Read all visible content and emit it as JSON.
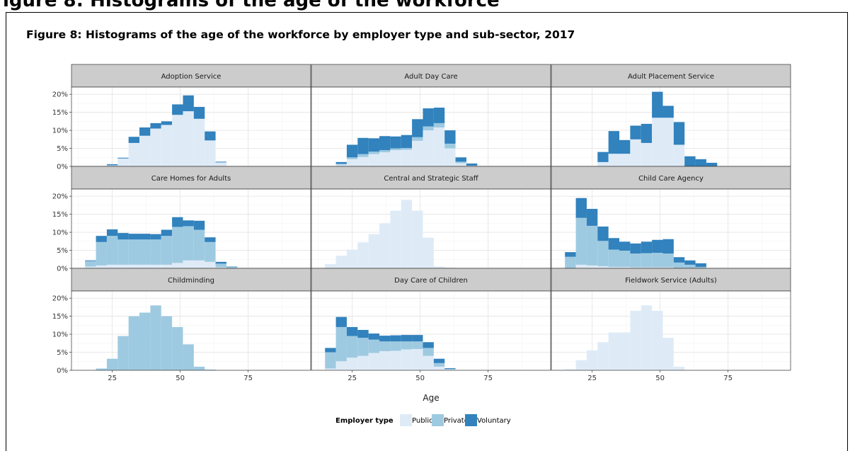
{
  "header": {
    "cut_heading": "igure 8: Histograms of the age of the workforce"
  },
  "figure": {
    "title": "Figure 8: Histograms of the age of the workforce by employer type and sub-sector, 2017"
  },
  "chart_data": {
    "type": "bar",
    "layout": "faceted stacked histogram, 3 x 3 panels",
    "bins": [
      17,
      21,
      25,
      29,
      33,
      37,
      41,
      45,
      49,
      53,
      57,
      61,
      65,
      69,
      73,
      77,
      81,
      85,
      89
    ],
    "bin_width": 4,
    "x_range": [
      10,
      98
    ],
    "x_ticks": [
      25,
      50,
      75
    ],
    "x_label": "Age",
    "y_range": [
      0,
      22
    ],
    "y_ticks": [
      0,
      5,
      10,
      15,
      20
    ],
    "y_tick_labels": [
      "0%",
      "5%",
      "10%",
      "15%",
      "20%"
    ],
    "grid": true,
    "legend": {
      "position": "bottom",
      "title": "Employer type",
      "entries": [
        {
          "name": "Public",
          "color": "#deebf7"
        },
        {
          "name": "Private",
          "color": "#9ecae1"
        },
        {
          "name": "Voluntary",
          "color": "#3182bd"
        }
      ]
    },
    "panels": [
      {
        "name": "Adoption Service",
        "public": [
          0,
          0,
          0.3,
          2.2,
          6.5,
          8.5,
          10.5,
          11.5,
          14.3,
          15.3,
          13.2,
          7.2,
          1.1,
          0,
          0,
          0,
          0,
          0,
          0
        ],
        "private": [
          0,
          0,
          0,
          0,
          0,
          0,
          0,
          0,
          0,
          0,
          0,
          0,
          0,
          0,
          0,
          0,
          0,
          0,
          0
        ],
        "voluntary": [
          0,
          0,
          0.3,
          0.2,
          1.7,
          2.3,
          1.5,
          1.0,
          2.9,
          4.4,
          3.3,
          2.5,
          0.2,
          0,
          0,
          0,
          0,
          0,
          0
        ]
      },
      {
        "name": "Adult Day Care",
        "public": [
          0,
          0.5,
          2.0,
          2.6,
          3.4,
          3.9,
          4.5,
          4.6,
          7.1,
          10.0,
          10.8,
          5.0,
          0.9,
          0.2,
          0,
          0,
          0,
          0,
          0
        ],
        "private": [
          0,
          0.2,
          0.5,
          0.8,
          0.7,
          0.6,
          0.5,
          0.5,
          1.0,
          1.1,
          1.2,
          1.3,
          0.4,
          0,
          0,
          0,
          0,
          0,
          0
        ],
        "voluntary": [
          0,
          0.5,
          3.5,
          4.5,
          3.7,
          3.9,
          3.3,
          3.6,
          5.0,
          5.0,
          4.3,
          3.7,
          1.2,
          0.6,
          0,
          0,
          0,
          0,
          0
        ]
      },
      {
        "name": "Adult Placement Service",
        "public": [
          0,
          0,
          0,
          1.2,
          3.5,
          3.5,
          7.5,
          6.5,
          13.5,
          13.5,
          6.0,
          0,
          0,
          0,
          0,
          0,
          0,
          0,
          0
        ],
        "private": [
          0,
          0,
          0,
          0,
          0,
          0,
          0,
          0,
          0,
          0,
          0,
          0,
          0,
          0,
          0,
          0,
          0,
          0,
          0
        ],
        "voluntary": [
          0,
          0,
          0,
          2.8,
          6.3,
          3.8,
          3.8,
          5.3,
          7.2,
          3.3,
          6.3,
          2.8,
          2.0,
          1.0,
          0,
          0,
          0,
          0,
          0
        ]
      },
      {
        "name": "Care Homes for Adults",
        "public": [
          0.5,
          0.8,
          1.0,
          1.0,
          1.0,
          1.0,
          1.0,
          1.0,
          1.5,
          2.2,
          2.2,
          1.8,
          0.3,
          0.1,
          0,
          0,
          0,
          0,
          0
        ],
        "private": [
          1.5,
          6.5,
          8.0,
          7.0,
          7.0,
          7.0,
          7.0,
          8.0,
          10.0,
          9.5,
          8.5,
          5.5,
          1.0,
          0.3,
          0.1,
          0,
          0,
          0,
          0
        ],
        "voluntary": [
          0.2,
          1.7,
          1.8,
          1.8,
          1.6,
          1.6,
          1.5,
          1.7,
          2.7,
          1.6,
          2.5,
          1.3,
          0.5,
          0.1,
          0,
          0,
          0,
          0,
          0
        ]
      },
      {
        "name": "Central and Strategic Staff",
        "public": [
          1.2,
          3.5,
          5.2,
          7.2,
          9.5,
          12.5,
          16.0,
          19.0,
          16.0,
          8.5,
          0.5,
          0.2,
          0,
          0,
          0,
          0,
          0,
          0,
          0
        ],
        "private": [
          0,
          0,
          0,
          0,
          0,
          0,
          0,
          0,
          0,
          0,
          0,
          0,
          0,
          0,
          0,
          0,
          0,
          0,
          0
        ],
        "voluntary": [
          0,
          0,
          0,
          0,
          0,
          0,
          0,
          0,
          0,
          0,
          0,
          0,
          0,
          0,
          0,
          0,
          0,
          0,
          0
        ]
      },
      {
        "name": "Child Care Agency",
        "public": [
          0,
          1.0,
          0.8,
          0.6,
          0.4,
          0.4,
          0.3,
          0.3,
          0.3,
          0.3,
          0,
          0,
          0,
          0,
          0,
          0,
          0,
          0,
          0
        ],
        "private": [
          3.2,
          13.0,
          11.0,
          7.0,
          4.8,
          4.5,
          3.8,
          3.9,
          4.0,
          3.8,
          1.6,
          1.0,
          0.4,
          0,
          0,
          0,
          0,
          0,
          0
        ],
        "voluntary": [
          1.3,
          5.5,
          4.7,
          4.0,
          3.2,
          2.5,
          2.8,
          3.2,
          3.6,
          4.0,
          1.5,
          1.2,
          1.0,
          0,
          0,
          0,
          0,
          0,
          0
        ]
      },
      {
        "name": "Childminding",
        "public": [
          0,
          0,
          0,
          0,
          0,
          0,
          0,
          0,
          0,
          0,
          0,
          0,
          0,
          0,
          0,
          0,
          0,
          0,
          0
        ],
        "private": [
          0,
          0.5,
          3.2,
          9.5,
          15.0,
          16.0,
          18.0,
          15.0,
          12.0,
          7.2,
          1.0,
          0.2,
          0,
          0,
          0,
          0,
          0,
          0,
          0
        ],
        "voluntary": [
          0,
          0,
          0,
          0,
          0,
          0,
          0,
          0,
          0,
          0,
          0,
          0,
          0,
          0,
          0,
          0,
          0,
          0,
          0
        ]
      },
      {
        "name": "Day Care of Children",
        "public": [
          0.5,
          2.5,
          3.5,
          4.0,
          4.8,
          5.3,
          5.4,
          5.8,
          5.9,
          4.0,
          1.0,
          0.2,
          0,
          0,
          0,
          0,
          0,
          0,
          0
        ],
        "private": [
          4.5,
          9.5,
          6.0,
          5.0,
          3.7,
          2.7,
          2.6,
          2.2,
          2.1,
          2.2,
          1.0,
          0.2,
          0,
          0,
          0,
          0,
          0,
          0,
          0
        ],
        "voluntary": [
          1.2,
          2.8,
          2.5,
          2.2,
          1.7,
          1.6,
          1.7,
          1.8,
          1.8,
          1.6,
          1.2,
          0.2,
          0,
          0,
          0,
          0,
          0,
          0,
          0
        ]
      },
      {
        "name": "Fieldwork Service (Adults)",
        "public": [
          0.3,
          2.8,
          5.5,
          7.8,
          10.5,
          10.5,
          16.5,
          18.0,
          16.5,
          9.0,
          1.0,
          0,
          0,
          0,
          0,
          0,
          0,
          0,
          0
        ],
        "private": [
          0,
          0,
          0,
          0,
          0,
          0,
          0,
          0,
          0,
          0,
          0,
          0,
          0,
          0,
          0,
          0,
          0,
          0,
          0
        ],
        "voluntary": [
          0,
          0,
          0,
          0,
          0,
          0,
          0,
          0,
          0,
          0,
          0,
          0,
          0,
          0,
          0,
          0,
          0,
          0,
          0
        ]
      }
    ]
  }
}
